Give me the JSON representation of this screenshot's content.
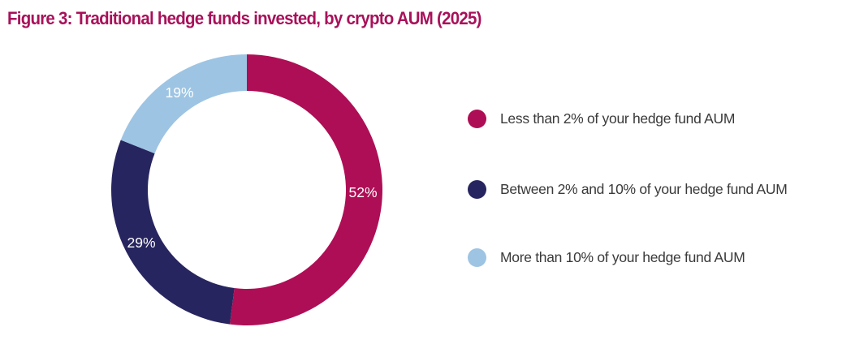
{
  "chart_data": {
    "type": "pie",
    "variant": "donut",
    "title": "Figure 3: Traditional hedge funds invested, by crypto AUM (2025)",
    "title_color": "#A8115A",
    "slices": [
      {
        "name": "Less than 2% of your hedge fund AUM",
        "value": 52,
        "label": "52%",
        "color": "#AE0E55"
      },
      {
        "name": "Between 2% and 10% of your hedge fund AUM",
        "value": 29,
        "label": "29%",
        "color": "#27255F"
      },
      {
        "name": "More than 10% of your hedge fund AUM",
        "value": 19,
        "label": "19%",
        "color": "#9DC4E3"
      }
    ],
    "legend_position": "right"
  }
}
